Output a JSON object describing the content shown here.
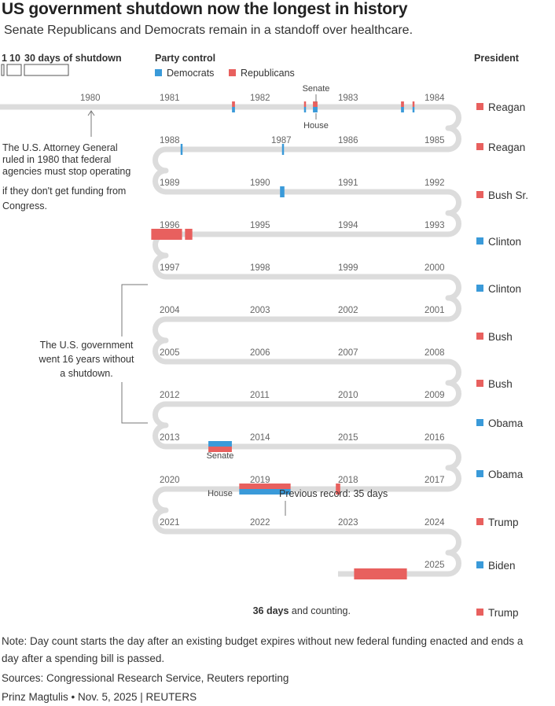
{
  "header": {
    "title": "US government shutdown now the longest in history",
    "subtitle": "Senate Republicans and Democrats remain in a standoff over healthcare."
  },
  "colors": {
    "democrats": "#3a9ad9",
    "republicans": "#e8605e",
    "track": "#dcdcdc"
  },
  "chart_data": {
    "type": "timeline",
    "title": "US government shutdown now the longest in history",
    "scale_legend": {
      "label": "30 days of shutdown",
      "ticks": [
        "1",
        "10"
      ]
    },
    "party_legend": {
      "heading": "Party control",
      "items": [
        "Democrats",
        "Republicans"
      ]
    },
    "president_heading": "President",
    "rows": [
      {
        "years": [
          "1980",
          "1981",
          "1982",
          "1983",
          "1984"
        ],
        "president": "Reagan",
        "party": "R"
      },
      {
        "years": [
          "1988",
          "1987",
          "1986",
          "1985"
        ],
        "president": "Reagan",
        "party": "R"
      },
      {
        "years": [
          "1989",
          "1990",
          "1991",
          "1992"
        ],
        "president": "Bush Sr.",
        "party": "R"
      },
      {
        "years": [
          "1996",
          "1995",
          "1994",
          "1993"
        ],
        "president": "Clinton",
        "party": "D"
      },
      {
        "years": [
          "1997",
          "1998",
          "1999",
          "2000"
        ],
        "president": "Clinton",
        "party": "D"
      },
      {
        "years": [
          "2004",
          "2003",
          "2002",
          "2001"
        ],
        "president": "Bush",
        "party": "R"
      },
      {
        "years": [
          "2005",
          "2006",
          "2007",
          "2008"
        ],
        "president": "Bush",
        "party": "R"
      },
      {
        "years": [
          "2012",
          "2011",
          "2010",
          "2009"
        ],
        "president": "Obama",
        "party": "D"
      },
      {
        "years": [
          "2013",
          "2014",
          "2015",
          "2016"
        ],
        "president": "Obama",
        "party": "D"
      },
      {
        "years": [
          "2020",
          "2019",
          "2018",
          "2017"
        ],
        "president": "Trump",
        "party": "R"
      },
      {
        "years": [
          "2021",
          "2022",
          "2023",
          "2024"
        ],
        "president": "Biden",
        "party": "D"
      },
      {
        "years": [
          "2025"
        ],
        "president": "Trump",
        "party": "R"
      }
    ],
    "shutdowns": [
      {
        "year": 1981,
        "days": 2,
        "senate": "R",
        "house": "D"
      },
      {
        "year": 1982,
        "days": 1,
        "senate": "R",
        "house": "D"
      },
      {
        "year": 1982,
        "days": 3,
        "senate": "R",
        "house": "D"
      },
      {
        "year": 1983,
        "days": 3,
        "senate": "R",
        "house": "D"
      },
      {
        "year": 1984,
        "days": 2,
        "senate": "R",
        "house": "D"
      },
      {
        "year": 1984,
        "days": 1,
        "senate": "R",
        "house": "D"
      },
      {
        "year": 1986,
        "days": 1,
        "senate": "D",
        "house": "D"
      },
      {
        "year": 1987,
        "days": 1,
        "senate": "D",
        "house": "D"
      },
      {
        "year": 1990,
        "days": 3,
        "senate": "D",
        "house": "D"
      },
      {
        "year": 1995,
        "days": 5,
        "senate": "R",
        "house": "R"
      },
      {
        "year": 1995,
        "days": 21,
        "senate": "R",
        "house": "R"
      },
      {
        "year": 2013,
        "days": 16,
        "senate": "D",
        "house": "R"
      },
      {
        "year": 2018,
        "days": 3,
        "senate": "R",
        "house": "R"
      },
      {
        "year": 2018,
        "days": 35,
        "senate": "R",
        "house": "D"
      },
      {
        "year": 2025,
        "days": 36,
        "senate": "R",
        "house": "R"
      }
    ],
    "annotations": {
      "senate": "Senate",
      "house": "House",
      "attorney_general": [
        "The U.S. Attorney General",
        "ruled in 1980 that federal",
        "agencies must stop operating",
        "if they don't get funding from",
        "Congress."
      ],
      "no_shutdown": [
        "The U.S. government",
        "went 16 years without",
        "a shutdown."
      ],
      "previous_record": "Previous record: 35 days",
      "current_days": "36 days",
      "current_suffix": " and counting."
    }
  },
  "footer": {
    "note_line1": "Note: Day count starts the day after an existing budget expires without new federal funding enacted and ends a",
    "note_line2": "day after a spending bill is passed.",
    "sources": "Sources: Congressional Research Service, Reuters reporting",
    "credit": "Prinz Magtulis • Nov. 5, 2025 | REUTERS"
  }
}
